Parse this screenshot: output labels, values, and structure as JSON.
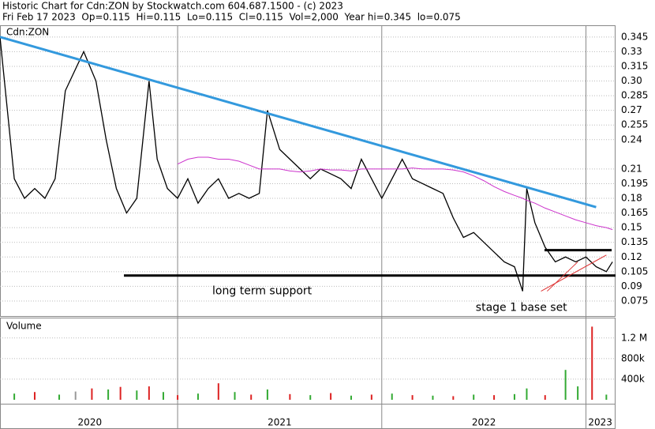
{
  "chart_data": {
    "type": "line",
    "title": "Historic Chart for Cdn:ZON by Stockwatch.com 604.687.1500 - (c) 2023",
    "subtitle": "Fri Feb 17 2023  Op=0.115  Hi=0.115  Lo=0.115  Cl=0.115  Vol=2,000  Year hi=0.345  lo=0.075",
    "panel_label": "Cdn:ZON",
    "xlim": [
      2020.13,
      2023.145
    ],
    "xticks": [
      {
        "value": 2020.57,
        "label": "2020"
      },
      {
        "value": 2021.5,
        "label": "2021"
      },
      {
        "value": 2022.5,
        "label": "2022"
      },
      {
        "value": 2023.07,
        "label": "2023"
      }
    ],
    "year_boundaries": [
      2021,
      2022,
      2023
    ],
    "ylim": [
      0.0596,
      0.357
    ],
    "yticks": [
      0.345,
      0.33,
      0.315,
      {
        "value": 0.3,
        "label": "0.30"
      },
      0.285,
      0.27,
      0.255,
      0.24,
      0.21,
      0.195,
      0.18,
      0.165,
      0.15,
      0.135,
      0.12,
      0.105,
      0.09,
      0.075
    ],
    "grid": true,
    "x": [
      2020.13,
      2020.2,
      2020.25,
      2020.3,
      2020.35,
      2020.4,
      2020.45,
      2020.54,
      2020.6,
      2020.65,
      2020.7,
      2020.75,
      2020.8,
      2020.86,
      2020.9,
      2020.95,
      2021.0,
      2021.05,
      2021.1,
      2021.15,
      2021.2,
      2021.25,
      2021.3,
      2021.35,
      2021.4,
      2021.44,
      2021.5,
      2021.55,
      2021.6,
      2021.65,
      2021.7,
      2021.75,
      2021.8,
      2021.85,
      2021.9,
      2021.95,
      2022.0,
      2022.05,
      2022.1,
      2022.15,
      2022.2,
      2022.25,
      2022.3,
      2022.35,
      2022.4,
      2022.45,
      2022.5,
      2022.55,
      2022.6,
      2022.65,
      2022.69,
      2022.71,
      2022.75,
      2022.8,
      2022.85,
      2022.9,
      2022.95,
      2023.0,
      2023.05,
      2023.1,
      2023.13
    ],
    "series": [
      {
        "name": "Price",
        "color": "#000000",
        "values": [
          0.345,
          0.2,
          0.18,
          0.19,
          0.18,
          0.2,
          0.29,
          0.33,
          0.3,
          0.24,
          0.19,
          0.165,
          0.18,
          0.3,
          0.22,
          0.19,
          0.18,
          0.2,
          0.175,
          0.19,
          0.2,
          0.18,
          0.185,
          0.18,
          0.185,
          0.27,
          0.23,
          0.22,
          0.21,
          0.2,
          0.21,
          0.205,
          0.2,
          0.19,
          0.22,
          0.2,
          0.18,
          0.2,
          0.22,
          0.2,
          0.195,
          0.19,
          0.185,
          0.16,
          0.14,
          0.145,
          0.135,
          0.125,
          0.115,
          0.11,
          0.085,
          0.19,
          0.155,
          0.13,
          0.115,
          0.12,
          0.115,
          0.12,
          0.11,
          0.105,
          0.115
        ]
      },
      {
        "name": "Moving average",
        "color": "#cc33cc",
        "values": [
          null,
          null,
          null,
          null,
          null,
          null,
          null,
          null,
          null,
          null,
          null,
          null,
          null,
          null,
          null,
          null,
          0.215,
          0.22,
          0.222,
          0.222,
          0.22,
          0.22,
          0.218,
          0.214,
          0.21,
          0.21,
          0.21,
          0.208,
          0.207,
          0.208,
          0.21,
          0.209,
          0.209,
          0.208,
          0.21,
          0.21,
          0.21,
          0.21,
          0.21,
          0.211,
          0.21,
          0.21,
          0.21,
          0.209,
          0.207,
          0.203,
          0.198,
          0.192,
          0.187,
          0.183,
          0.18,
          0.178,
          0.175,
          0.17,
          0.166,
          0.162,
          0.158,
          0.155,
          0.152,
          0.15,
          0.148
        ]
      }
    ],
    "trend_line": {
      "color": "#3399dd",
      "x": [
        2020.13,
        2023.05
      ],
      "values": [
        0.345,
        0.171
      ]
    },
    "support_line": {
      "color": "#000000",
      "x": [
        2020.737,
        2023.145
      ],
      "values": [
        0.101,
        0.101
      ]
    },
    "base_top_line": {
      "color": "#000000",
      "x": [
        2022.797,
        2023.126
      ],
      "values": [
        0.127,
        0.127
      ]
    },
    "base_marks": {
      "color": "#dd3333",
      "x": [
        2022.78,
        2023.1,
        2022.81,
        2022.96
      ],
      "values": [
        0.085,
        0.122,
        0.085,
        0.115
      ]
    },
    "annotations": [
      {
        "text": "long term support",
        "x": 2021.17,
        "value": 0.085
      },
      {
        "text": "stage 1 base set",
        "x": 2022.46,
        "value": 0.068
      }
    ],
    "volume": {
      "label": "Volume",
      "ylim": [
        0,
        1580000
      ],
      "yticks": [
        {
          "value": 400000,
          "label": "400k"
        },
        {
          "value": 800000,
          "label": "800k"
        },
        {
          "value": 1200000,
          "label": "1.2 M"
        }
      ],
      "x": [
        2020.2,
        2020.3,
        2020.42,
        2020.5,
        2020.58,
        2020.66,
        2020.72,
        2020.8,
        2020.86,
        2020.93,
        2021.0,
        2021.1,
        2021.2,
        2021.28,
        2021.36,
        2021.44,
        2021.55,
        2021.65,
        2021.75,
        2021.85,
        2021.95,
        2022.05,
        2022.15,
        2022.25,
        2022.35,
        2022.45,
        2022.55,
        2022.65,
        2022.71,
        2022.8,
        2022.9,
        2022.96,
        2023.03,
        2023.1
      ],
      "values": [
        120000,
        150000,
        100000,
        160000,
        220000,
        200000,
        250000,
        180000,
        260000,
        150000,
        90000,
        120000,
        320000,
        150000,
        100000,
        200000,
        110000,
        90000,
        130000,
        80000,
        100000,
        120000,
        90000,
        80000,
        70000,
        100000,
        90000,
        110000,
        220000,
        90000,
        580000,
        260000,
        1420000,
        100000
      ],
      "colors": [
        "#33aa33",
        "#dd2222",
        "#33aa33",
        "#999999",
        "#dd2222",
        "#33aa33",
        "#dd2222",
        "#33aa33",
        "#dd2222",
        "#33aa33",
        "#dd2222",
        "#33aa33",
        "#dd2222",
        "#33aa33",
        "#dd2222",
        "#33aa33",
        "#dd2222",
        "#33aa33",
        "#dd2222",
        "#33aa33",
        "#dd2222",
        "#33aa33",
        "#dd2222",
        "#33aa33",
        "#dd2222",
        "#33aa33",
        "#dd2222",
        "#33aa33",
        "#33aa33",
        "#dd2222",
        "#33aa33",
        "#33aa33",
        "#dd2222",
        "#33aa33"
      ]
    }
  }
}
